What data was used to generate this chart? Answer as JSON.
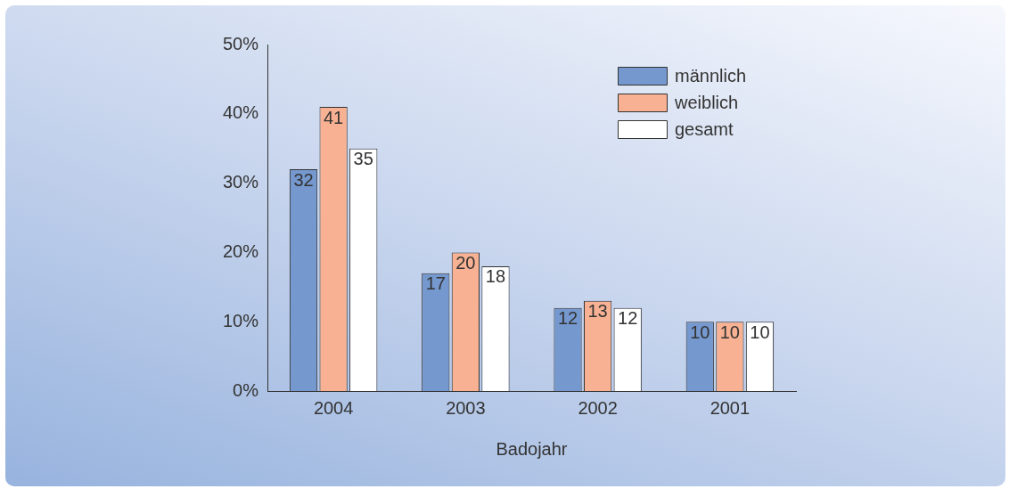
{
  "chart_data": {
    "type": "bar",
    "xlabel": "Badojahr",
    "categories": [
      "2004",
      "2003",
      "2002",
      "2001"
    ],
    "series": [
      {
        "name": "männlich",
        "color": "#7598cf",
        "values": [
          32,
          17,
          12,
          10
        ]
      },
      {
        "name": "weiblich",
        "color": "#f8b293",
        "values": [
          41,
          20,
          13,
          10
        ]
      },
      {
        "name": "gesamt",
        "color": "#ffffff",
        "values": [
          35,
          18,
          12,
          10
        ]
      }
    ],
    "ylim": [
      0,
      50
    ],
    "yticks": [
      {
        "value": 0,
        "label": "0%"
      },
      {
        "value": 10,
        "label": "10%"
      },
      {
        "value": 20,
        "label": "20%"
      },
      {
        "value": 30,
        "label": "30%"
      },
      {
        "value": 40,
        "label": "40%"
      },
      {
        "value": 50,
        "label": "50%"
      }
    ],
    "grid": false,
    "legend": "top right",
    "data_labels": true
  }
}
